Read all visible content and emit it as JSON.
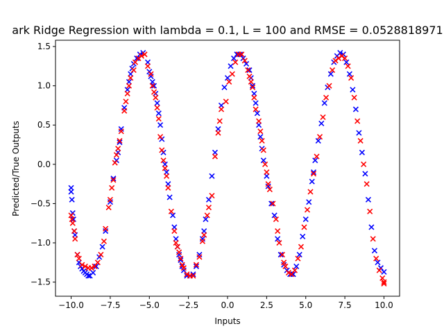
{
  "chart_data": {
    "type": "scatter",
    "title": "ark Ridge Regression with lambda = 0.1, L = 100 and RMSE = 0.0528818971",
    "xlabel": "Inputs",
    "ylabel": "Predicted/True Outputs",
    "xlim": [
      -11.0,
      11.0
    ],
    "ylim": [
      -1.68,
      1.58
    ],
    "xticks": [
      -10.0,
      -7.5,
      -5.0,
      -2.5,
      0.0,
      2.5,
      5.0,
      7.5,
      10.0
    ],
    "xtick_labels": [
      "−10.0",
      "−7.5",
      "−5.0",
      "−2.5",
      "0.0",
      "2.5",
      "5.0",
      "7.5",
      "10.0"
    ],
    "yticks": [
      -1.5,
      -1.0,
      -0.5,
      0.0,
      0.5,
      1.0,
      1.5
    ],
    "ytick_labels": [
      "−1.5",
      "−1.0",
      "−0.5",
      "0.0",
      "0.5",
      "1.0",
      "1.5"
    ],
    "grid": false,
    "marker": "x",
    "series": [
      {
        "color": "#0000ff",
        "points": [
          [
            -10.0,
            -0.3
          ],
          [
            -10.0,
            -0.35
          ],
          [
            -9.95,
            -0.45
          ],
          [
            -9.9,
            -0.62
          ],
          [
            -9.85,
            -0.7
          ],
          [
            -9.8,
            -0.85
          ],
          [
            -9.75,
            -0.9
          ],
          [
            -9.6,
            -1.15
          ],
          [
            -9.5,
            -1.25
          ],
          [
            -9.4,
            -1.3
          ],
          [
            -9.3,
            -1.33
          ],
          [
            -9.2,
            -1.36
          ],
          [
            -9.1,
            -1.38
          ],
          [
            -9.0,
            -1.4
          ],
          [
            -8.9,
            -1.42
          ],
          [
            -8.8,
            -1.42
          ],
          [
            -8.6,
            -1.38
          ],
          [
            -8.4,
            -1.3
          ],
          [
            -8.2,
            -1.18
          ],
          [
            -8.0,
            -1.05
          ],
          [
            -7.8,
            -0.85
          ],
          [
            -7.5,
            -0.48
          ],
          [
            -7.3,
            -0.18
          ],
          [
            -7.1,
            0.05
          ],
          [
            -7.0,
            0.15
          ],
          [
            -6.9,
            0.28
          ],
          [
            -6.8,
            0.45
          ],
          [
            -6.6,
            0.72
          ],
          [
            -6.4,
            0.95
          ],
          [
            -6.3,
            1.05
          ],
          [
            -6.2,
            1.15
          ],
          [
            -6.1,
            1.22
          ],
          [
            -6.0,
            1.28
          ],
          [
            -5.8,
            1.35
          ],
          [
            -5.6,
            1.4
          ],
          [
            -5.4,
            1.42
          ],
          [
            -5.1,
            1.3
          ],
          [
            -5.0,
            1.18
          ],
          [
            -4.9,
            1.12
          ],
          [
            -4.8,
            1.05
          ],
          [
            -4.7,
            1.0
          ],
          [
            -4.6,
            0.9
          ],
          [
            -4.5,
            0.78
          ],
          [
            -4.4,
            0.65
          ],
          [
            -4.3,
            0.5
          ],
          [
            -4.2,
            0.32
          ],
          [
            -4.1,
            0.15
          ],
          [
            -4.0,
            0.0
          ],
          [
            -3.9,
            -0.1
          ],
          [
            -3.8,
            -0.25
          ],
          [
            -3.7,
            -0.42
          ],
          [
            -3.5,
            -0.65
          ],
          [
            -3.4,
            -0.8
          ],
          [
            -3.3,
            -0.95
          ],
          [
            -3.2,
            -1.05
          ],
          [
            -3.1,
            -1.15
          ],
          [
            -3.0,
            -1.22
          ],
          [
            -2.9,
            -1.3
          ],
          [
            -2.8,
            -1.35
          ],
          [
            -2.6,
            -1.42
          ],
          [
            -2.4,
            -1.42
          ],
          [
            -2.2,
            -1.4
          ],
          [
            -2.0,
            -1.3
          ],
          [
            -1.8,
            -1.15
          ],
          [
            -1.6,
            -0.95
          ],
          [
            -1.5,
            -0.85
          ],
          [
            -1.4,
            -0.7
          ],
          [
            -1.2,
            -0.45
          ],
          [
            -1.0,
            -0.15
          ],
          [
            -0.8,
            0.15
          ],
          [
            -0.6,
            0.45
          ],
          [
            -0.4,
            0.75
          ],
          [
            -0.2,
            0.98
          ],
          [
            0.0,
            1.1
          ],
          [
            0.2,
            1.25
          ],
          [
            0.4,
            1.35
          ],
          [
            0.6,
            1.4
          ],
          [
            0.8,
            1.4
          ],
          [
            1.0,
            1.35
          ],
          [
            1.2,
            1.28
          ],
          [
            1.4,
            1.2
          ],
          [
            1.5,
            1.1
          ],
          [
            1.6,
            1.0
          ],
          [
            1.7,
            0.9
          ],
          [
            1.8,
            0.78
          ],
          [
            1.9,
            0.65
          ],
          [
            2.0,
            0.5
          ],
          [
            2.1,
            0.35
          ],
          [
            2.2,
            0.2
          ],
          [
            2.3,
            0.05
          ],
          [
            2.5,
            -0.15
          ],
          [
            2.6,
            -0.28
          ],
          [
            2.8,
            -0.5
          ],
          [
            3.0,
            -0.65
          ],
          [
            3.2,
            -0.95
          ],
          [
            3.4,
            -1.15
          ],
          [
            3.6,
            -1.28
          ],
          [
            3.8,
            -1.35
          ],
          [
            4.0,
            -1.4
          ],
          [
            4.2,
            -1.4
          ],
          [
            4.4,
            -1.3
          ],
          [
            4.6,
            -1.15
          ],
          [
            4.8,
            -0.92
          ],
          [
            5.0,
            -0.7
          ],
          [
            5.2,
            -0.48
          ],
          [
            5.4,
            -0.22
          ],
          [
            5.5,
            -0.1
          ],
          [
            5.6,
            0.05
          ],
          [
            5.8,
            0.3
          ],
          [
            6.0,
            0.52
          ],
          [
            6.2,
            0.78
          ],
          [
            6.4,
            0.98
          ],
          [
            6.6,
            1.15
          ],
          [
            6.8,
            1.3
          ],
          [
            7.0,
            1.38
          ],
          [
            7.2,
            1.42
          ],
          [
            7.4,
            1.4
          ],
          [
            7.6,
            1.3
          ],
          [
            7.8,
            1.15
          ],
          [
            8.0,
            0.95
          ],
          [
            8.2,
            0.7
          ],
          [
            8.4,
            0.4
          ],
          [
            8.6,
            0.15
          ],
          [
            8.8,
            -0.12
          ],
          [
            9.0,
            -0.45
          ],
          [
            9.2,
            -0.8
          ],
          [
            9.4,
            -1.1
          ],
          [
            9.6,
            -1.25
          ],
          [
            9.8,
            -1.32
          ],
          [
            10.0,
            -1.37
          ]
        ]
      },
      {
        "color": "#ff0000",
        "points": [
          [
            -10.0,
            -0.65
          ],
          [
            -9.95,
            -0.7
          ],
          [
            -9.9,
            -0.75
          ],
          [
            -9.8,
            -0.85
          ],
          [
            -9.75,
            -0.95
          ],
          [
            -9.6,
            -1.15
          ],
          [
            -9.5,
            -1.2
          ],
          [
            -9.3,
            -1.28
          ],
          [
            -9.1,
            -1.3
          ],
          [
            -8.9,
            -1.32
          ],
          [
            -8.7,
            -1.32
          ],
          [
            -8.5,
            -1.3
          ],
          [
            -8.3,
            -1.25
          ],
          [
            -8.1,
            -1.15
          ],
          [
            -7.9,
            -0.98
          ],
          [
            -7.8,
            -0.82
          ],
          [
            -7.6,
            -0.55
          ],
          [
            -7.5,
            -0.45
          ],
          [
            -7.4,
            -0.3
          ],
          [
            -7.3,
            -0.2
          ],
          [
            -7.2,
            0.02
          ],
          [
            -7.1,
            0.12
          ],
          [
            -7.0,
            0.2
          ],
          [
            -6.9,
            0.3
          ],
          [
            -6.8,
            0.42
          ],
          [
            -6.6,
            0.68
          ],
          [
            -6.5,
            0.8
          ],
          [
            -6.4,
            0.9
          ],
          [
            -6.3,
            1.0
          ],
          [
            -6.2,
            1.1
          ],
          [
            -6.0,
            1.2
          ],
          [
            -5.9,
            1.3
          ],
          [
            -5.7,
            1.35
          ],
          [
            -5.5,
            1.38
          ],
          [
            -5.3,
            1.4
          ],
          [
            -5.1,
            1.25
          ],
          [
            -4.9,
            1.15
          ],
          [
            -4.8,
            1.0
          ],
          [
            -4.7,
            0.92
          ],
          [
            -4.6,
            0.85
          ],
          [
            -4.5,
            0.72
          ],
          [
            -4.4,
            0.58
          ],
          [
            -4.3,
            0.35
          ],
          [
            -4.2,
            0.18
          ],
          [
            -4.1,
            0.05
          ],
          [
            -4.0,
            -0.05
          ],
          [
            -3.9,
            -0.15
          ],
          [
            -3.8,
            -0.3
          ],
          [
            -3.6,
            -0.6
          ],
          [
            -3.4,
            -0.85
          ],
          [
            -3.3,
            -1.0
          ],
          [
            -3.2,
            -1.05
          ],
          [
            -3.1,
            -1.12
          ],
          [
            -3.0,
            -1.2
          ],
          [
            -2.9,
            -1.28
          ],
          [
            -2.8,
            -1.32
          ],
          [
            -2.6,
            -1.4
          ],
          [
            -2.4,
            -1.42
          ],
          [
            -2.2,
            -1.42
          ],
          [
            -2.0,
            -1.28
          ],
          [
            -1.8,
            -1.18
          ],
          [
            -1.6,
            -0.98
          ],
          [
            -1.5,
            -0.9
          ],
          [
            -1.3,
            -0.65
          ],
          [
            -1.2,
            -0.55
          ],
          [
            -1.0,
            -0.4
          ],
          [
            -0.8,
            0.1
          ],
          [
            -0.6,
            0.4
          ],
          [
            -0.5,
            0.55
          ],
          [
            -0.4,
            0.7
          ],
          [
            -0.1,
            0.8
          ],
          [
            0.1,
            1.05
          ],
          [
            0.3,
            1.15
          ],
          [
            0.5,
            1.3
          ],
          [
            0.7,
            1.4
          ],
          [
            0.9,
            1.4
          ],
          [
            1.1,
            1.32
          ],
          [
            1.3,
            1.2
          ],
          [
            1.4,
            1.12
          ],
          [
            1.5,
            1.05
          ],
          [
            1.6,
            0.98
          ],
          [
            1.7,
            0.85
          ],
          [
            1.8,
            0.7
          ],
          [
            2.0,
            0.55
          ],
          [
            2.1,
            0.42
          ],
          [
            2.2,
            0.3
          ],
          [
            2.3,
            0.18
          ],
          [
            2.4,
            0.0
          ],
          [
            2.5,
            -0.1
          ],
          [
            2.6,
            -0.25
          ],
          [
            2.7,
            -0.32
          ],
          [
            2.9,
            -0.5
          ],
          [
            3.1,
            -0.7
          ],
          [
            3.2,
            -0.85
          ],
          [
            3.3,
            -1.0
          ],
          [
            3.5,
            -1.15
          ],
          [
            3.6,
            -1.25
          ],
          [
            3.7,
            -1.3
          ],
          [
            3.9,
            -1.38
          ],
          [
            4.1,
            -1.4
          ],
          [
            4.3,
            -1.35
          ],
          [
            4.5,
            -1.2
          ],
          [
            4.7,
            -1.05
          ],
          [
            4.9,
            -0.8
          ],
          [
            5.1,
            -0.58
          ],
          [
            5.3,
            -0.35
          ],
          [
            5.5,
            -0.12
          ],
          [
            5.7,
            0.1
          ],
          [
            5.9,
            0.35
          ],
          [
            6.1,
            0.6
          ],
          [
            6.3,
            0.85
          ],
          [
            6.5,
            1.0
          ],
          [
            6.7,
            1.2
          ],
          [
            6.9,
            1.32
          ],
          [
            7.1,
            1.35
          ],
          [
            7.3,
            1.38
          ],
          [
            7.5,
            1.35
          ],
          [
            7.7,
            1.25
          ],
          [
            7.9,
            1.1
          ],
          [
            8.1,
            0.85
          ],
          [
            8.3,
            0.55
          ],
          [
            8.5,
            0.3
          ],
          [
            8.7,
            0.0
          ],
          [
            8.9,
            -0.25
          ],
          [
            9.1,
            -0.6
          ],
          [
            9.3,
            -0.95
          ],
          [
            9.5,
            -1.2
          ],
          [
            9.7,
            -1.35
          ],
          [
            9.9,
            -1.45
          ],
          [
            10.0,
            -1.52
          ],
          [
            10.0,
            -1.5
          ]
        ]
      }
    ]
  }
}
